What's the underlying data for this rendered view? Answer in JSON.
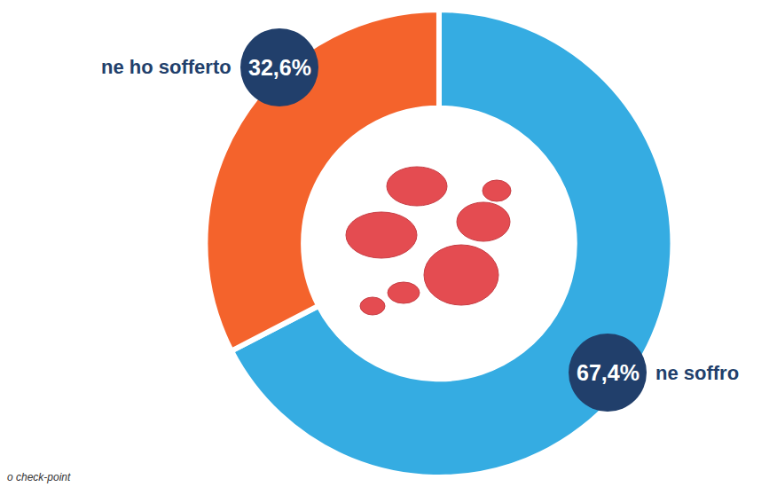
{
  "chart_data": {
    "type": "pie",
    "categories": [
      "ne soffro",
      "ne ho sofferto"
    ],
    "values": [
      67.4,
      32.6
    ],
    "value_labels": [
      "67,4%",
      "32,6%"
    ],
    "colors": [
      "#35ace2",
      "#f4632c"
    ],
    "data_labels": true,
    "note": "o check-point"
  }
}
